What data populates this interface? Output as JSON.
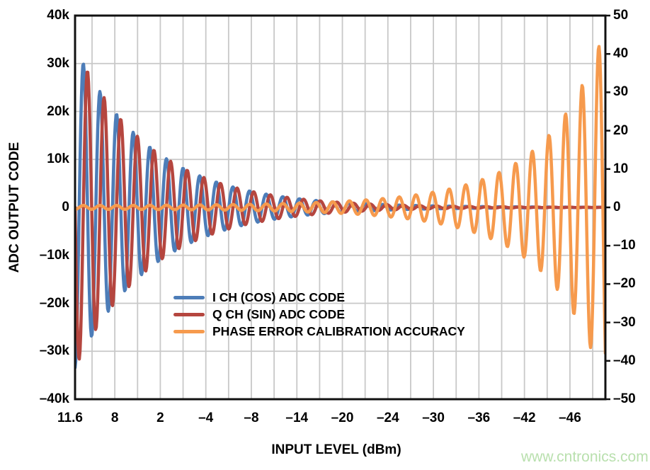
{
  "watermark": {
    "text": "www.cntronics.com",
    "color": "#B9E0AE"
  },
  "chart_data": {
    "type": "line",
    "xlabel": "INPUT LEVEL (dBm)",
    "ylabel_left": "ADC OUTPUT CODE",
    "x_tick_labels": [
      "11.6",
      "8",
      "2",
      "–4",
      "–8",
      "–14",
      "–20",
      "–24",
      "–30",
      "–36",
      "–42",
      "–46"
    ],
    "y_left_tick_labels": [
      "40k",
      "30k",
      "20k",
      "10k",
      "0",
      "–10k",
      "–20k",
      "–30k",
      "–40k"
    ],
    "y_right_tick_labels": [
      "50",
      "40",
      "30",
      "20",
      "10",
      "0",
      "–10",
      "–20",
      "–30",
      "–40",
      "–50"
    ],
    "y_left_range": [
      -40000,
      40000
    ],
    "y_right_range": [
      -50,
      50
    ],
    "grid": true,
    "legend_position": "center",
    "axis_colors": {
      "text": "#000000",
      "border": "#111111",
      "grid": "#C8C8C8"
    },
    "series": [
      {
        "name": "I CH (COS) ADC CODE",
        "color": "#4D7DB8",
        "axis": "left",
        "waveform": "cosine burst with exponentially decaying envelope",
        "peak_amplitudes_codes": [
          30000,
          25200,
          19900,
          15800,
          12700,
          10200,
          8300,
          6800
        ]
      },
      {
        "name": "Q CH (SIN) ADC CODE",
        "color": "#B5463F",
        "axis": "left",
        "waveform": "sine burst (lags I by 90 deg) with exponentially decaying envelope",
        "peak_amplitudes_codes": [
          30000,
          25000,
          20000,
          16000,
          12700,
          10200,
          8300,
          6800
        ]
      },
      {
        "name": "PHASE ERROR CALIBRATION ACCURACY",
        "color": "#F69A4D",
        "axis": "right",
        "waveform": "oscillation with exponentially growing envelope toward low input level",
        "final_peak_values": [
          10.3,
          13.5,
          17.7,
          22.1,
          27.3,
          37.1,
          47.6
        ]
      }
    ],
    "waveform": {
      "cycles_across_plot": 31.9,
      "iq_first_peak_value": 30000,
      "iq_decay_ratio_per_cycle": 0.805,
      "q_lag_deg": 90,
      "phase_envelope_start": 0.5,
      "phase_envelope_end": 47
    }
  }
}
